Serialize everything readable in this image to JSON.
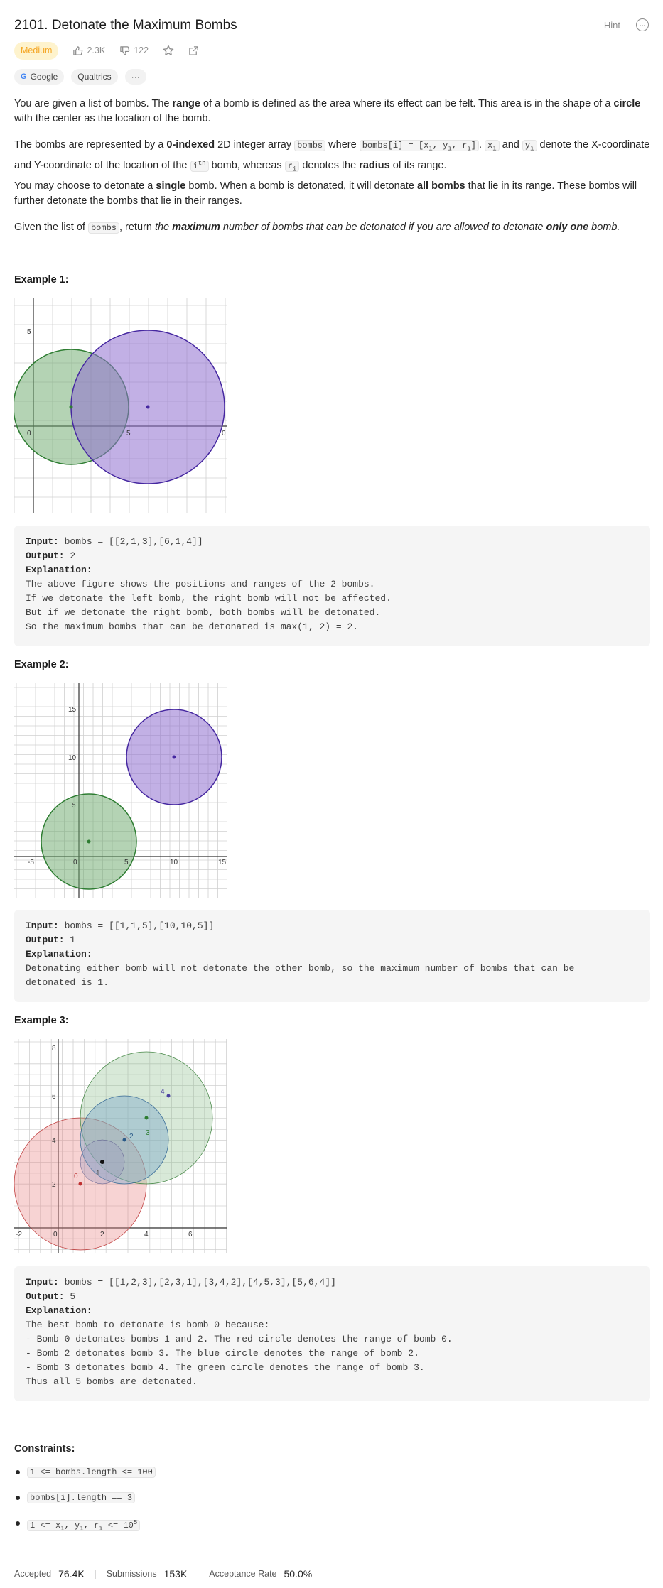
{
  "header": {
    "title": "2101. Detonate the Maximum Bombs",
    "hint_label": "Hint",
    "difficulty": "Medium",
    "likes": "2.3K",
    "dislikes": "122",
    "tags": [
      "Google",
      "Qualtrics"
    ],
    "more_tag": "···"
  },
  "description": {
    "p1": {
      "a": "You are given a list of bombs. The ",
      "b": "range",
      "c": " of a bomb is defined as the area where its effect can be felt. This area is in the shape of a ",
      "d": "circle",
      "e": " with the center as the location of the bomb."
    },
    "p2": {
      "a": "The bombs are represented by a ",
      "b": "0-indexed",
      "c": " 2D integer array ",
      "code1": "bombs",
      "d": " where ",
      "code2": "bombs[i] = [x",
      "code2_i1": "i",
      "code2_m": ", y",
      "code2_i2": "i",
      "code2_m2": ", r",
      "code2_i3": "i",
      "code2_end": "]",
      "e": ". ",
      "xi": "x",
      "xi_sub": "i",
      "f": " and ",
      "yi": "y",
      "yi_sub": "i",
      "g": " denote the X-coordinate and Y-coordinate of the location of the ",
      "ith": "i",
      "ith_sup": "th",
      "h": " bomb, whereas ",
      "ri": "r",
      "ri_sub": "i",
      "i": " denotes the ",
      "j": "radius",
      "k": " of its range."
    },
    "p3": {
      "a": "You may choose to detonate a ",
      "b": "single",
      "c": " bomb. When a bomb is detonated, it will detonate ",
      "d": "all bombs",
      "e": " that lie in its range. These bombs will further detonate the bombs that lie in their ranges."
    },
    "p4": {
      "a": "Given the list of ",
      "code": "bombs",
      "b": ", return ",
      "c": "the ",
      "d": "maximum",
      "e": " number of bombs that can be detonated if you are allowed to detonate ",
      "f": "only one",
      "g": " bomb."
    }
  },
  "examples": [
    {
      "title": "Example 1:",
      "input_label": "Input:",
      "input": " bombs = [[2,1,3],[6,1,4]]",
      "output_label": "Output:",
      "output": " 2",
      "explanation_label": "Explanation:",
      "explanation": [
        "The above figure shows the positions and ranges of the 2 bombs.",
        "If we detonate the left bomb, the right bomb will not be affected.",
        "But if we detonate the right bomb, both bombs will be detonated.",
        "So the maximum bombs that can be detonated is max(1, 2) = 2."
      ]
    },
    {
      "title": "Example 2:",
      "input_label": "Input:",
      "input": " bombs = [[1,1,5],[10,10,5]]",
      "output_label": "Output:",
      "output": " 1",
      "explanation_label": "Explanation:",
      "explanation": [
        "Detonating either bomb will not detonate the other bomb, so the maximum number of bombs that can be",
        "detonated is 1."
      ]
    },
    {
      "title": "Example 3:",
      "input_label": "Input:",
      "input": " bombs = [[1,2,3],[2,3,1],[3,4,2],[4,5,3],[5,6,4]]",
      "output_label": "Output:",
      "output": " 5",
      "explanation_label": "Explanation:",
      "explanation": [
        "The best bomb to detonate is bomb 0 because:",
        "- Bomb 0 detonates bombs 1 and 2. The red circle denotes the range of bomb 0.",
        "- Bomb 2 detonates bomb 3. The blue circle denotes the range of bomb 2.",
        "- Bomb 3 detonates bomb 4. The green circle denotes the range of bomb 3.",
        "Thus all 5 bombs are detonated."
      ]
    }
  ],
  "figures": {
    "fig1": {
      "ticks": [
        "5",
        "0",
        "5",
        "0"
      ]
    },
    "fig2": {
      "ticks": [
        "15",
        "10",
        "5",
        "-5",
        "0",
        "5",
        "10",
        "15"
      ]
    },
    "fig3": {
      "ticks": [
        "8",
        "6",
        "4",
        "2",
        "-2",
        "0",
        "2",
        "4",
        "6"
      ],
      "labels": [
        "0",
        "1",
        "2",
        "3",
        "4"
      ]
    }
  },
  "constraints": {
    "title": "Constraints:",
    "items": [
      "1 <= bombs.length <= 100",
      "bombs[i].length == 3"
    ],
    "c3": {
      "a": "1 <= x",
      "s1": "i",
      "b": ", y",
      "s2": "i",
      "c": ", r",
      "s3": "i",
      "d": " <= 10",
      "sup": "5"
    }
  },
  "stats": {
    "accepted_label": "Accepted",
    "accepted": "76.4K",
    "submissions_label": "Submissions",
    "submissions": "153K",
    "rate_label": "Acceptance Rate",
    "rate": "50.0%"
  },
  "colors": {
    "green_fill": "#6aa76a",
    "green_stroke": "#2e7d32",
    "purple_fill": "#8f6fcf",
    "purple_stroke": "#4527a0",
    "red_fill": "#e88080",
    "blue_fill": "#7fa8c9",
    "difficulty_bg": "#fef3cd",
    "difficulty_fg": "#f5a623"
  }
}
